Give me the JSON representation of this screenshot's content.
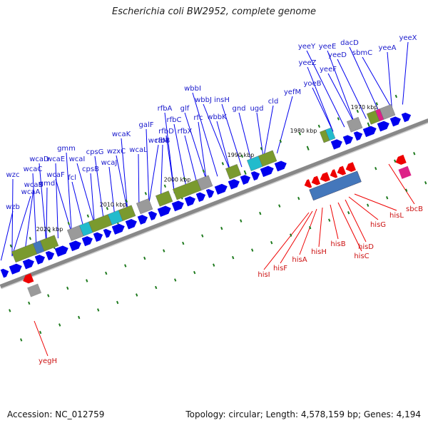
{
  "title": "Escherichia coli BW2952, complete genome",
  "footer": {
    "accession": "Accession: NC_012759",
    "topology": "Topology: circular; Length: 4,578,159 bp; Genes: 4,194"
  },
  "colors": {
    "forward_gene": "#0000ee",
    "reverse_gene": "#ee0000",
    "forward_label": "#1a1acc",
    "reverse_label": "#cc1111",
    "backbone": "#888888",
    "tick": "#1e7a1e",
    "cog_olive": "#7a9a2e",
    "cog_gray": "#9a9a9a",
    "cog_cyan": "#22bbcc",
    "cog_blue": "#4477bb",
    "cog_magenta": "#dd2288"
  },
  "kbp_marks": [
    "1970 kbp",
    "1980 kbp",
    "1990 kbp",
    "2000 kbp",
    "2010 kbp",
    "2020 kbp"
  ],
  "forward_genes": [
    "yeeX",
    "yeeA",
    "sbmC",
    "dacD",
    "yeeD",
    "yeeE",
    "yeeF",
    "yeeY",
    "yeeZ",
    "yoeB",
    "yefM",
    "cld",
    "ugd",
    "gnd",
    "insH",
    "wbbK",
    "wbbJ",
    "wbbI",
    "rfc",
    "glf",
    "rfbX",
    "rfbC",
    "rfbA",
    "rfbD",
    "rfbB",
    "galF",
    "wcaM",
    "wcaL",
    "wcaK",
    "wzxC",
    "wcaJ",
    "cpsG",
    "cpsB",
    "wcaI",
    "fcl",
    "gmm",
    "wcaF",
    "wcaE",
    "gmd",
    "wcaD",
    "wcaC",
    "wcaB",
    "wcaA",
    "wzc",
    "wzb"
  ],
  "reverse_genes": [
    "sbcB",
    "hisL",
    "hisG",
    "hisD",
    "hisC",
    "hisB",
    "hisH",
    "hisA",
    "hisF",
    "hisI",
    "yegH"
  ]
}
